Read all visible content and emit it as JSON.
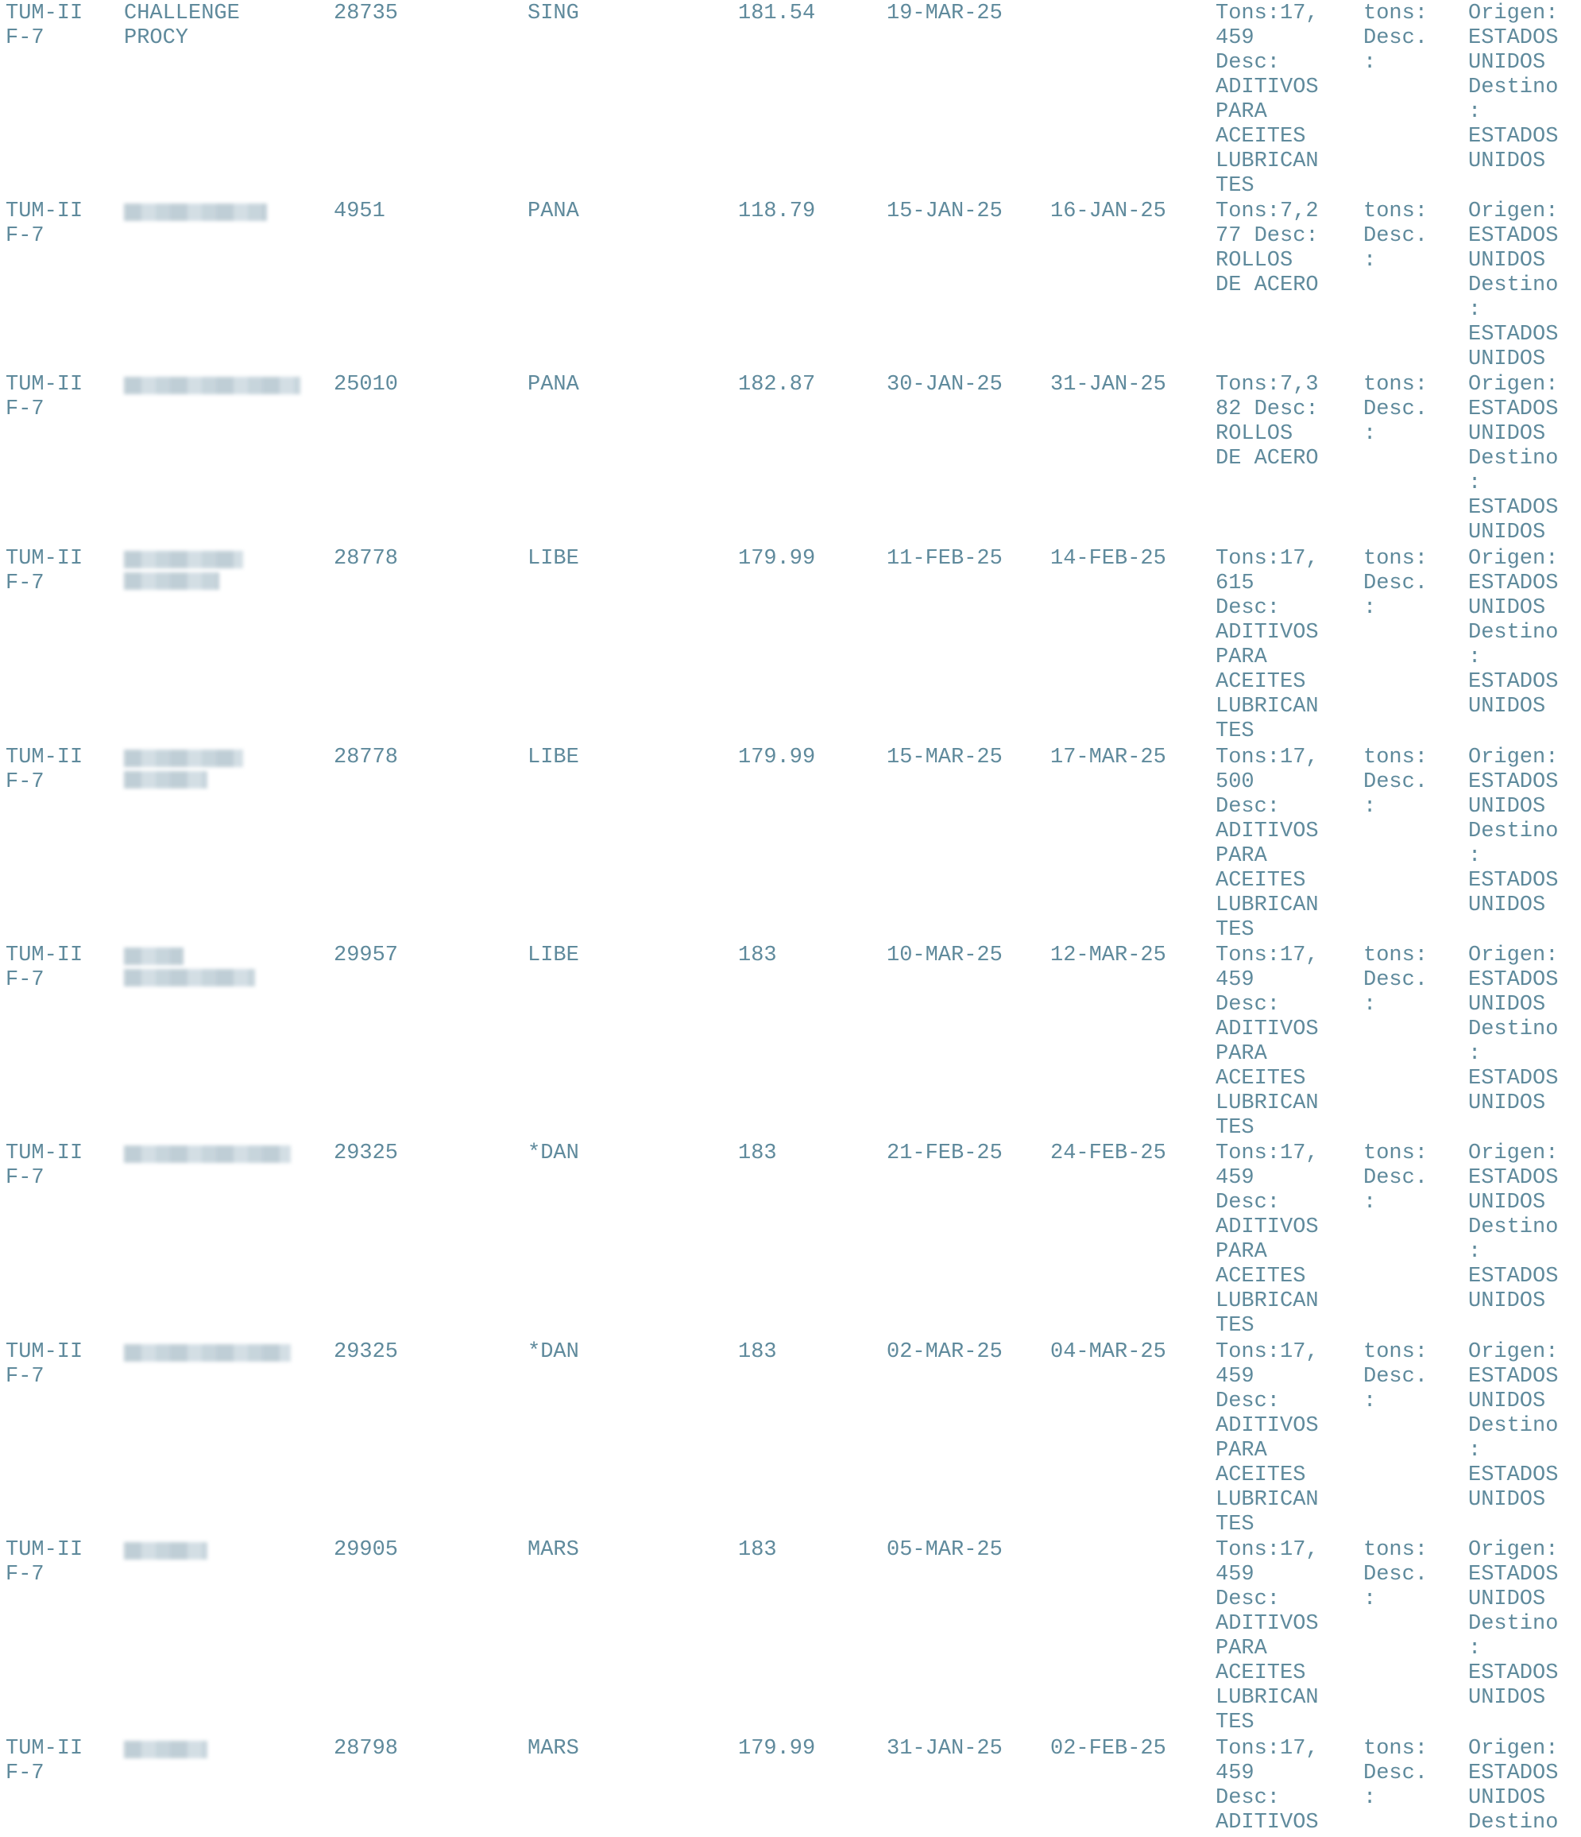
{
  "rows": [
    {
      "terminal": "TUM-II\nF-7",
      "vessel": "CHALLENGE\nPROCY",
      "vessel_redacted": false,
      "vessel_lines": [],
      "id": "28735",
      "flag": "SING",
      "length": "181.54",
      "eta": "19-MAR-25",
      "etd": "",
      "cargo": "Tons:17,\n459\nDesc:\nADITIVOS\nPARA\nACEITES\nLUBRICAN\nTES",
      "tons": "tons:\nDesc.\n:",
      "route": "Origen:\nESTADOS\nUNIDOS\nDestino\n:\nESTADOS\nUNIDOS"
    },
    {
      "terminal": "TUM-II\nF-7",
      "vessel": "",
      "vessel_redacted": true,
      "vessel_lines": [
        180
      ],
      "id": "4951",
      "flag": "PANA",
      "length": "118.79",
      "eta": "15-JAN-25",
      "etd": "16-JAN-25",
      "cargo": "Tons:7,2\n77 Desc:\nROLLOS\nDE ACERO",
      "tons": "tons:\nDesc.\n:",
      "route": "Origen:\nESTADOS\nUNIDOS\nDestino\n:\nESTADOS\nUNIDOS"
    },
    {
      "terminal": "TUM-II\nF-7",
      "vessel": "",
      "vessel_redacted": true,
      "vessel_lines": [
        222
      ],
      "id": "25010",
      "flag": "PANA",
      "length": "182.87",
      "eta": "30-JAN-25",
      "etd": "31-JAN-25",
      "cargo": "Tons:7,3\n82 Desc:\nROLLOS\nDE ACERO",
      "tons": "tons:\nDesc.\n:",
      "route": "Origen:\nESTADOS\nUNIDOS\nDestino\n:\nESTADOS\nUNIDOS"
    },
    {
      "terminal": "TUM-II\nF-7",
      "vessel": "",
      "vessel_redacted": true,
      "vessel_lines": [
        150,
        120
      ],
      "id": "28778",
      "flag": "LIBE",
      "length": "179.99",
      "eta": "11-FEB-25",
      "etd": "14-FEB-25",
      "cargo": "Tons:17,\n615\nDesc:\nADITIVOS\nPARA\nACEITES\nLUBRICAN\nTES",
      "tons": "tons:\nDesc.\n:",
      "route": "Origen:\nESTADOS\nUNIDOS\nDestino\n:\nESTADOS\nUNIDOS"
    },
    {
      "terminal": "TUM-II\nF-7",
      "vessel": "",
      "vessel_redacted": true,
      "vessel_lines": [
        150,
        105
      ],
      "id": "28778",
      "flag": "LIBE",
      "length": "179.99",
      "eta": "15-MAR-25",
      "etd": "17-MAR-25",
      "cargo": "Tons:17,\n500\nDesc:\nADITIVOS\nPARA\nACEITES\nLUBRICAN\nTES",
      "tons": "tons:\nDesc.\n:",
      "route": "Origen:\nESTADOS\nUNIDOS\nDestino\n:\nESTADOS\nUNIDOS"
    },
    {
      "terminal": "TUM-II\nF-7",
      "vessel": "",
      "vessel_redacted": true,
      "vessel_lines": [
        75,
        165
      ],
      "id": "29957",
      "flag": "LIBE",
      "length": "183",
      "eta": "10-MAR-25",
      "etd": "12-MAR-25",
      "cargo": "Tons:17,\n459\nDesc:\nADITIVOS\nPARA\nACEITES\nLUBRICAN\nTES",
      "tons": "tons:\nDesc.\n:",
      "route": "Origen:\nESTADOS\nUNIDOS\nDestino\n:\nESTADOS\nUNIDOS"
    },
    {
      "terminal": "TUM-II\nF-7",
      "vessel": "",
      "vessel_redacted": true,
      "vessel_lines": [
        210
      ],
      "id": "29325",
      "flag": "*DAN",
      "length": "183",
      "eta": "21-FEB-25",
      "etd": "24-FEB-25",
      "cargo": "Tons:17,\n459\nDesc:\nADITIVOS\nPARA\nACEITES\nLUBRICAN\nTES",
      "tons": "tons:\nDesc.\n:",
      "route": "Origen:\nESTADOS\nUNIDOS\nDestino\n:\nESTADOS\nUNIDOS"
    },
    {
      "terminal": "TUM-II\nF-7",
      "vessel": "",
      "vessel_redacted": true,
      "vessel_lines": [
        210
      ],
      "id": "29325",
      "flag": "*DAN",
      "length": "183",
      "eta": "02-MAR-25",
      "etd": "04-MAR-25",
      "cargo": "Tons:17,\n459\nDesc:\nADITIVOS\nPARA\nACEITES\nLUBRICAN\nTES",
      "tons": "tons:\nDesc.\n:",
      "route": "Origen:\nESTADOS\nUNIDOS\nDestino\n:\nESTADOS\nUNIDOS"
    },
    {
      "terminal": "TUM-II\nF-7",
      "vessel": "",
      "vessel_redacted": true,
      "vessel_lines": [
        105
      ],
      "id": "29905",
      "flag": "MARS",
      "length": "183",
      "eta": "05-MAR-25",
      "etd": "",
      "cargo": "Tons:17,\n459\nDesc:\nADITIVOS\nPARA\nACEITES\nLUBRICAN\nTES",
      "tons": "tons:\nDesc.\n:",
      "route": "Origen:\nESTADOS\nUNIDOS\nDestino\n:\nESTADOS\nUNIDOS"
    },
    {
      "terminal": "TUM-II\nF-7",
      "vessel": "",
      "vessel_redacted": true,
      "vessel_lines": [
        105
      ],
      "id": "28798",
      "flag": "MARS",
      "length": "179.99",
      "eta": "31-JAN-25",
      "etd": "02-FEB-25",
      "cargo": "Tons:17,\n459\nDesc:\nADITIVOS",
      "tons": "tons:\nDesc.\n:",
      "route": "Origen:\nESTADOS\nUNIDOS\nDestino"
    }
  ]
}
